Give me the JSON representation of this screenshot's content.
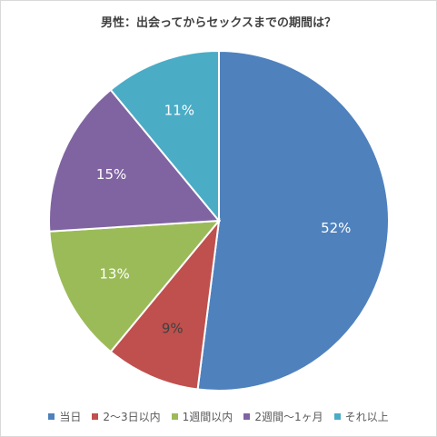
{
  "chart_data": {
    "type": "pie",
    "title": "男性：出会ってからセックスまでの期間は？",
    "categories": [
      "当日",
      "2〜3日以内",
      "1週間以内",
      "2週間〜1ヶ月",
      "それ以上"
    ],
    "values": [
      52,
      9,
      13,
      15,
      11
    ],
    "value_labels": [
      "52%",
      "9%",
      "13%",
      "15%",
      "11%"
    ],
    "colors": [
      "#4f81bd",
      "#c0504d",
      "#9bbb59",
      "#8064a2",
      "#4bacc6"
    ],
    "start_angle": "12 o'clock, clockwise",
    "legend_position": "bottom"
  }
}
